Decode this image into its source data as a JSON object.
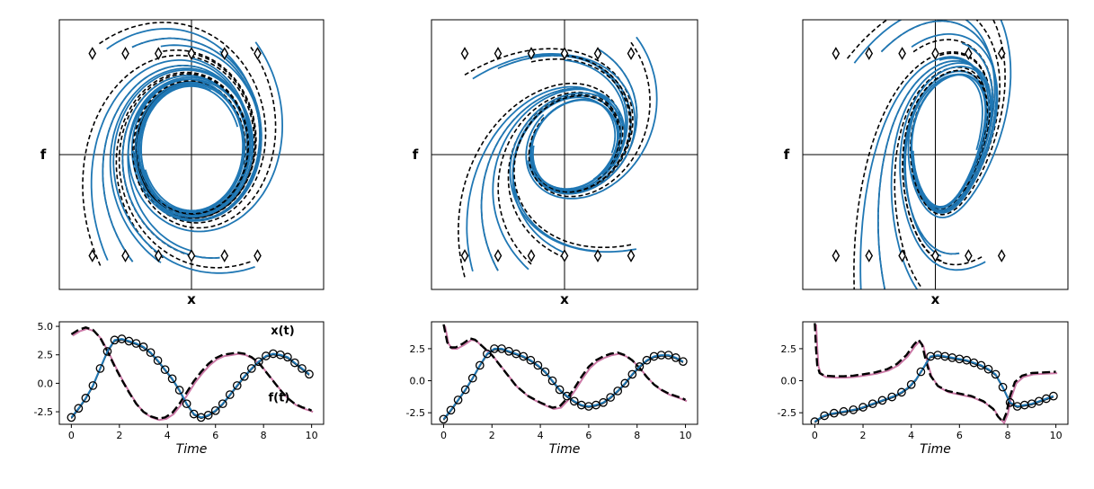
{
  "colors": {
    "stream": "#1f77b4",
    "reference": "#000000",
    "force_true": "#cc79a7",
    "marker_edge": "#000000"
  },
  "chart_data": [
    {
      "type": "line",
      "panel": "phase-portrait-1",
      "xlabel": "x",
      "ylabel": "f",
      "xlim": [
        -4,
        4
      ],
      "ylim": [
        -4,
        4
      ],
      "axes_lines": true,
      "start_markers": [
        [
          -3,
          3
        ],
        [
          -2,
          3
        ],
        [
          -1,
          3
        ],
        [
          0,
          3
        ],
        [
          1,
          3
        ],
        [
          2,
          3
        ],
        [
          -3,
          -3
        ],
        [
          -2,
          -3
        ],
        [
          -1,
          -3
        ],
        [
          0,
          -3
        ],
        [
          1,
          -3
        ],
        [
          2,
          -3
        ]
      ]
    },
    {
      "type": "line",
      "panel": "phase-portrait-2",
      "xlabel": "x",
      "ylabel": "f",
      "xlim": [
        -4,
        4
      ],
      "ylim": [
        -4,
        4
      ],
      "axes_lines": true,
      "start_markers": [
        [
          -3,
          3
        ],
        [
          -2,
          3
        ],
        [
          -1,
          3
        ],
        [
          0,
          3
        ],
        [
          1,
          3
        ],
        [
          2,
          3
        ],
        [
          -3,
          -3
        ],
        [
          -2,
          -3
        ],
        [
          -1,
          -3
        ],
        [
          0,
          -3
        ],
        [
          1,
          -3
        ],
        [
          2,
          -3
        ]
      ]
    },
    {
      "type": "line",
      "panel": "phase-portrait-3",
      "xlabel": "x",
      "ylabel": "f",
      "xlim": [
        -4,
        4
      ],
      "ylim": [
        -4,
        4
      ],
      "axes_lines": true,
      "start_markers": [
        [
          -3,
          3
        ],
        [
          -2,
          3
        ],
        [
          -1,
          3
        ],
        [
          0,
          3
        ],
        [
          1,
          3
        ],
        [
          2,
          3
        ],
        [
          -3,
          -3
        ],
        [
          -2,
          -3
        ],
        [
          -1,
          -3
        ],
        [
          0,
          -3
        ],
        [
          1,
          -3
        ],
        [
          2,
          -3
        ]
      ]
    },
    {
      "type": "line",
      "panel": "time-series-1",
      "xlabel": "Time",
      "xlim": [
        -0.5,
        10.5
      ],
      "ylim": [
        -3.6,
        5.4
      ],
      "xticks": [
        "0",
        "2",
        "4",
        "6",
        "8",
        "10"
      ],
      "yticks": [
        "-2.5",
        "0.0",
        "2.5",
        "5.0"
      ],
      "ytick_values": [
        -2.5,
        0.0,
        2.5,
        5.0
      ],
      "annotations": [
        "x(t)",
        "f(t)"
      ],
      "series": [
        {
          "name": "x(t)",
          "t": [
            0,
            0.3,
            0.6,
            0.9,
            1.2,
            1.5,
            1.8,
            2.1,
            2.4,
            2.7,
            3.0,
            3.3,
            3.6,
            3.9,
            4.2,
            4.5,
            4.8,
            5.1,
            5.4,
            5.7,
            6.0,
            6.3,
            6.6,
            6.9,
            7.2,
            7.5,
            7.8,
            8.1,
            8.4,
            8.7,
            9.0,
            9.3,
            9.6,
            9.9
          ],
          "values": [
            -3.0,
            -2.2,
            -1.3,
            -0.2,
            1.3,
            2.8,
            3.8,
            3.9,
            3.7,
            3.5,
            3.2,
            2.7,
            2.0,
            1.2,
            0.4,
            -0.6,
            -1.8,
            -2.7,
            -3.0,
            -2.8,
            -2.4,
            -1.8,
            -1.0,
            -0.2,
            0.6,
            1.3,
            1.9,
            2.4,
            2.6,
            2.5,
            2.3,
            1.8,
            1.3,
            0.8
          ]
        },
        {
          "name": "f(t)",
          "t": [
            0,
            0.3,
            0.6,
            0.9,
            1.2,
            1.5,
            1.8,
            2.1,
            2.4,
            2.7,
            3.0,
            3.3,
            3.6,
            3.9,
            4.2,
            4.5,
            4.8,
            5.1,
            5.4,
            5.7,
            6.0,
            6.3,
            6.6,
            6.9,
            7.2,
            7.5,
            7.8,
            8.1,
            8.4,
            8.7,
            9.0,
            9.3,
            9.6,
            9.9,
            10
          ],
          "values": [
            4.3,
            4.7,
            4.9,
            4.7,
            4.0,
            2.8,
            1.5,
            0.3,
            -0.8,
            -1.8,
            -2.5,
            -2.9,
            -3.1,
            -3.0,
            -2.6,
            -1.8,
            -0.8,
            0.2,
            1.0,
            1.7,
            2.2,
            2.5,
            2.6,
            2.7,
            2.6,
            2.3,
            1.8,
            1.0,
            0.2,
            -0.6,
            -1.3,
            -1.8,
            -2.1,
            -2.3,
            -2.4
          ]
        }
      ],
      "markers_x": [
        0,
        0.3,
        0.6,
        0.9,
        1.2,
        1.5,
        1.8,
        2.1,
        2.4,
        2.7,
        3.0,
        3.3,
        3.6,
        3.9,
        4.2,
        4.5,
        4.8,
        5.1,
        5.4,
        5.7,
        6.0,
        6.3,
        6.6,
        6.9,
        7.2,
        7.5,
        7.8,
        8.1,
        8.4,
        8.7,
        9.0,
        9.3,
        9.6,
        9.9
      ]
    },
    {
      "type": "line",
      "panel": "time-series-2",
      "xlabel": "Time",
      "xlim": [
        -0.5,
        10.5
      ],
      "ylim": [
        -3.4,
        4.6
      ],
      "xticks": [
        "0",
        "2",
        "4",
        "6",
        "8",
        "10"
      ],
      "yticks": [
        "-2.5",
        "0.0",
        "2.5"
      ],
      "ytick_values": [
        -2.5,
        0.0,
        2.5
      ],
      "series": [
        {
          "name": "x(t)",
          "t": [
            0,
            0.3,
            0.6,
            0.9,
            1.2,
            1.5,
            1.8,
            2.1,
            2.4,
            2.7,
            3.0,
            3.3,
            3.6,
            3.9,
            4.2,
            4.5,
            4.8,
            5.1,
            5.4,
            5.7,
            6.0,
            6.3,
            6.6,
            6.9,
            7.2,
            7.5,
            7.8,
            8.1,
            8.4,
            8.7,
            9.0,
            9.3,
            9.6,
            9.9
          ],
          "values": [
            -3.0,
            -2.3,
            -1.5,
            -0.7,
            0.2,
            1.2,
            2.1,
            2.5,
            2.5,
            2.3,
            2.1,
            1.9,
            1.6,
            1.2,
            0.7,
            0.0,
            -0.7,
            -1.2,
            -1.6,
            -1.9,
            -2.0,
            -1.9,
            -1.7,
            -1.3,
            -0.8,
            -0.2,
            0.5,
            1.1,
            1.6,
            1.9,
            2.0,
            2.0,
            1.8,
            1.5
          ]
        },
        {
          "name": "f(t)",
          "t": [
            0,
            0.15,
            0.3,
            0.5,
            0.8,
            1.1,
            1.3,
            1.6,
            2.0,
            2.5,
            3.0,
            3.5,
            4.0,
            4.5,
            4.8,
            5.1,
            5.4,
            5.7,
            6.0,
            6.3,
            6.6,
            6.9,
            7.2,
            7.5,
            7.8,
            8.1,
            8.4,
            8.7,
            9.0,
            9.3,
            9.6,
            9.9,
            10
          ],
          "values": [
            4.4,
            3.0,
            2.6,
            2.6,
            2.9,
            3.3,
            3.2,
            2.7,
            2.0,
            0.8,
            -0.4,
            -1.2,
            -1.7,
            -2.1,
            -2.0,
            -1.4,
            -0.6,
            0.3,
            1.1,
            1.6,
            1.9,
            2.1,
            2.2,
            2.0,
            1.6,
            1.0,
            0.3,
            -0.3,
            -0.7,
            -1.0,
            -1.2,
            -1.4,
            -1.5
          ]
        }
      ],
      "markers_x": [
        0,
        0.3,
        0.6,
        0.9,
        1.2,
        1.5,
        1.8,
        2.1,
        2.4,
        2.7,
        3.0,
        3.3,
        3.6,
        3.9,
        4.2,
        4.5,
        4.8,
        5.1,
        5.4,
        5.7,
        6.0,
        6.3,
        6.6,
        6.9,
        7.2,
        7.5,
        7.8,
        8.1,
        8.4,
        8.7,
        9.0,
        9.3,
        9.6,
        9.9
      ]
    },
    {
      "type": "line",
      "panel": "time-series-3",
      "xlabel": "Time",
      "xlim": [
        -0.5,
        10.5
      ],
      "ylim": [
        -3.4,
        4.6
      ],
      "xticks": [
        "0",
        "2",
        "4",
        "6",
        "8",
        "10"
      ],
      "yticks": [
        "-2.5",
        "0.0",
        "2.5"
      ],
      "ytick_values": [
        -2.5,
        0.0,
        2.5
      ],
      "series": [
        {
          "name": "x(t)",
          "t": [
            0,
            0.3,
            0.6,
            0.9,
            1.2,
            1.5,
            1.8,
            2.1,
            2.4,
            2.7,
            3.0,
            3.3,
            3.6,
            3.9,
            4.2,
            4.5,
            4.8,
            5.1,
            5.4,
            5.7,
            6.0,
            6.3,
            6.6,
            6.9,
            7.2,
            7.5,
            7.8,
            8.1,
            8.4,
            8.7,
            9.0,
            9.3,
            9.6,
            9.9
          ],
          "values": [
            -3.2,
            -2.8,
            -2.6,
            -2.5,
            -2.4,
            -2.3,
            -2.2,
            -2.0,
            -1.8,
            -1.6,
            -1.4,
            -1.2,
            -0.9,
            -0.5,
            0.1,
            1.0,
            1.9,
            2.0,
            1.9,
            1.8,
            1.7,
            1.6,
            1.4,
            1.2,
            0.9,
            0.5,
            -0.5,
            -1.7,
            -2.0,
            -1.9,
            -1.8,
            -1.6,
            -1.4,
            -1.2
          ]
        },
        {
          "name": "f(t)",
          "t": [
            0,
            0.05,
            0.1,
            0.2,
            0.4,
            0.8,
            1.2,
            1.6,
            2.0,
            2.5,
            3.0,
            3.4,
            3.8,
            4.1,
            4.3,
            4.45,
            4.6,
            4.8,
            5.1,
            5.5,
            6.0,
            6.5,
            7.0,
            7.4,
            7.6,
            7.8,
            7.95,
            8.1,
            8.3,
            8.6,
            9.0,
            9.5,
            10
          ],
          "values": [
            4.5,
            2.5,
            1.2,
            0.6,
            0.4,
            0.35,
            0.35,
            0.4,
            0.5,
            0.65,
            0.9,
            1.3,
            2.0,
            2.8,
            3.2,
            2.8,
            1.6,
            0.4,
            -0.4,
            -0.8,
            -1.0,
            -1.2,
            -1.6,
            -2.2,
            -2.8,
            -3.2,
            -2.5,
            -1.2,
            -0.1,
            0.4,
            0.6,
            0.65,
            0.7
          ]
        }
      ],
      "markers_x": [
        0,
        0.4,
        0.8,
        1.2,
        1.6,
        2.0,
        2.4,
        2.8,
        3.2,
        3.6,
        4.0,
        4.4,
        4.8,
        5.1,
        5.4,
        5.7,
        6.0,
        6.3,
        6.6,
        6.9,
        7.2,
        7.5,
        7.8,
        8.1,
        8.4,
        8.7,
        9.0,
        9.3,
        9.6,
        9.9
      ]
    }
  ]
}
